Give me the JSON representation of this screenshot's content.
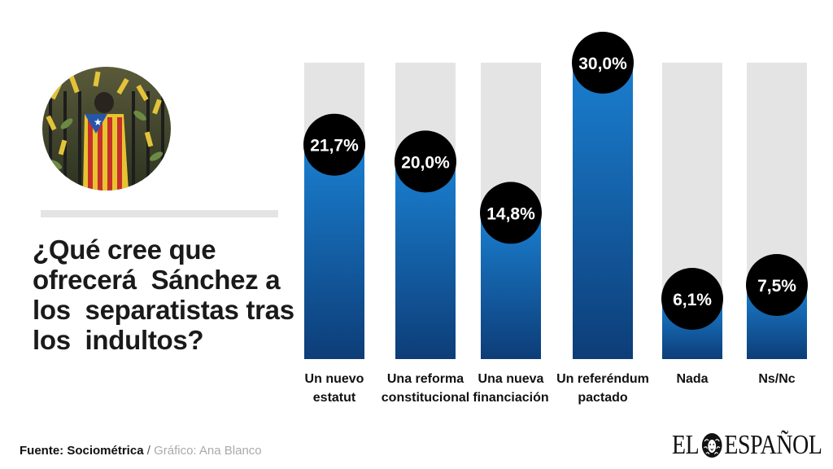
{
  "question_lines": [
    "¿Qué cree que",
    "ofrecerá  Sánchez a",
    "los  separatistas tras",
    "los  indultos?"
  ],
  "footer": {
    "source": "Fuente: Sociométrica",
    "separator": " / ",
    "credit": "Gráfico: Ana Blanco"
  },
  "logo": {
    "left": "EL",
    "right": "ESPAÑOL"
  },
  "colors": {
    "bar_top": "#1a7fd0",
    "bar_bottom": "#0d3d78",
    "track": "#e4e4e4",
    "bubble": "#000000",
    "bubble_text": "#ffffff"
  },
  "chart_data": {
    "type": "bar",
    "categories": [
      [
        "Un nuevo",
        "estatut"
      ],
      [
        "Una reforma",
        "constitucional"
      ],
      [
        "Una nueva",
        "financiación"
      ],
      [
        "Un referéndum",
        "pactado"
      ],
      [
        "Nada"
      ],
      [
        "Ns/Nc"
      ]
    ],
    "values": [
      21.7,
      20.0,
      14.8,
      30.0,
      6.1,
      7.5
    ],
    "data_labels": [
      "21,7%",
      "20,0%",
      "14,8%",
      "30,0%",
      "6,1%",
      "7,5%"
    ],
    "ylim": [
      0,
      30
    ],
    "grid": false,
    "legend": "none"
  }
}
